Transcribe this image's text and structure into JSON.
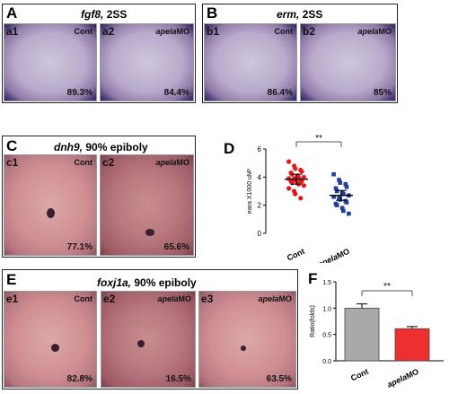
{
  "panel_A": {
    "letter": "A",
    "gene": "fgf8,",
    "stage": "2SS",
    "sub1": {
      "label": "a1",
      "condition": "Cont",
      "percent": "89.3%"
    },
    "sub2": {
      "label": "a2",
      "condition_italic": "apela",
      "condition_rest": "MO",
      "percent": "84.4%"
    }
  },
  "panel_B": {
    "letter": "B",
    "gene": "erm,",
    "stage": "2SS",
    "sub1": {
      "label": "b1",
      "condition": "Cont",
      "percent": "86.4%"
    },
    "sub2": {
      "label": "b2",
      "condition_italic": "apela",
      "condition_rest": "MO",
      "percent": "85%"
    }
  },
  "panel_C": {
    "letter": "C",
    "gene": "dnh9,",
    "stage": "90% epiboly",
    "sub1": {
      "label": "c1",
      "condition": "Cont",
      "percent": "77.1%"
    },
    "sub2": {
      "label": "c2",
      "condition_italic": "apela",
      "condition_rest": "MO",
      "percent": "65.6%"
    }
  },
  "panel_E": {
    "letter": "E",
    "gene": "foxj1a,",
    "stage": "90% epiboly",
    "sub1": {
      "label": "e1",
      "condition": "Cont",
      "percent": "82.8%"
    },
    "sub2": {
      "label": "e2",
      "condition_italic": "apela",
      "condition_rest": "MO",
      "percent": "16.5%"
    },
    "sub3": {
      "label": "e3",
      "condition_italic": "apela",
      "condition_rest": "MO",
      "percent": "63.5%"
    }
  },
  "panel_D": {
    "letter": "D"
  },
  "panel_F": {
    "letter": "F"
  },
  "chart_data": [
    {
      "type": "scatter",
      "panel": "D",
      "ylabel": "eara X1000 uM²",
      "categories": [
        "Cont",
        "apelaMO"
      ],
      "ylim": [
        0,
        6
      ],
      "yticks": [
        "0",
        "2",
        "4",
        "6"
      ],
      "significance": "**",
      "colors": {
        "Cont": "#e8161c",
        "apelaMO": "#1f3f9a"
      },
      "series": [
        {
          "category": "Cont",
          "mean": 3.85,
          "values": [
            5.1,
            4.8,
            4.6,
            4.5,
            4.4,
            4.3,
            4.2,
            4.1,
            4.0,
            4.0,
            3.9,
            3.9,
            3.8,
            3.8,
            3.7,
            3.7,
            3.6,
            3.6,
            3.5,
            3.4,
            3.2,
            3.0,
            2.8,
            2.5
          ]
        },
        {
          "category": "apelaMO",
          "mean": 2.7,
          "values": [
            4.2,
            3.8,
            3.6,
            3.5,
            3.3,
            3.2,
            3.0,
            2.9,
            2.8,
            2.7,
            2.6,
            2.5,
            2.4,
            2.3,
            2.2,
            2.1,
            2.0,
            1.8,
            1.6,
            1.4
          ]
        }
      ]
    },
    {
      "type": "bar",
      "panel": "F",
      "ylabel": "Ratio(folds)",
      "categories": [
        "Cont",
        "apelaMO"
      ],
      "values": [
        1.0,
        0.61
      ],
      "errors": [
        0.08,
        0.04
      ],
      "ylim": [
        0,
        1.5
      ],
      "yticks": [
        "0.0",
        "0.5",
        "1.0",
        "1.5"
      ],
      "significance": "**",
      "colors": [
        "#a9a9a9",
        "#ee2f2f"
      ]
    }
  ]
}
